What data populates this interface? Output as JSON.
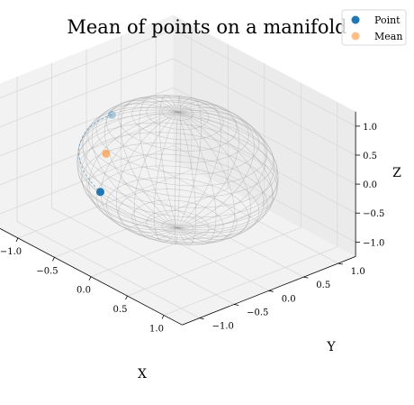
{
  "chart_data": {
    "type": "scatter",
    "title": "Mean of points on a manifold",
    "xlabel": "X",
    "ylabel": "Y",
    "zlabel": "Z",
    "xlim": [
      -1.25,
      1.25
    ],
    "ylim": [
      -1.25,
      1.25
    ],
    "zlim": [
      -1.25,
      1.25
    ],
    "x_ticks": [
      "−1.0",
      "−0.5",
      "0.0",
      "0.5",
      "1.0"
    ],
    "y_ticks": [
      "−1.0",
      "−0.5",
      "0.0",
      "0.5",
      "1.0"
    ],
    "z_ticks": [
      "−1.0",
      "−0.5",
      "0.0",
      "0.5",
      "1.0"
    ],
    "grid": true,
    "legend_position": "top-right",
    "surface": "unit sphere (wireframe)",
    "series": [
      {
        "name": "Point",
        "color": "#1f77b4",
        "points": [
          [
            -0.56,
            -0.36,
            0.75
          ],
          [
            -0.66,
            -0.42,
            -0.62
          ]
        ]
      },
      {
        "name": "Mean",
        "color": "#ff7f0e",
        "points": [
          [
            -0.61,
            -0.39,
            0.06
          ]
        ]
      }
    ],
    "geodesic_color": "#1f77b4"
  }
}
